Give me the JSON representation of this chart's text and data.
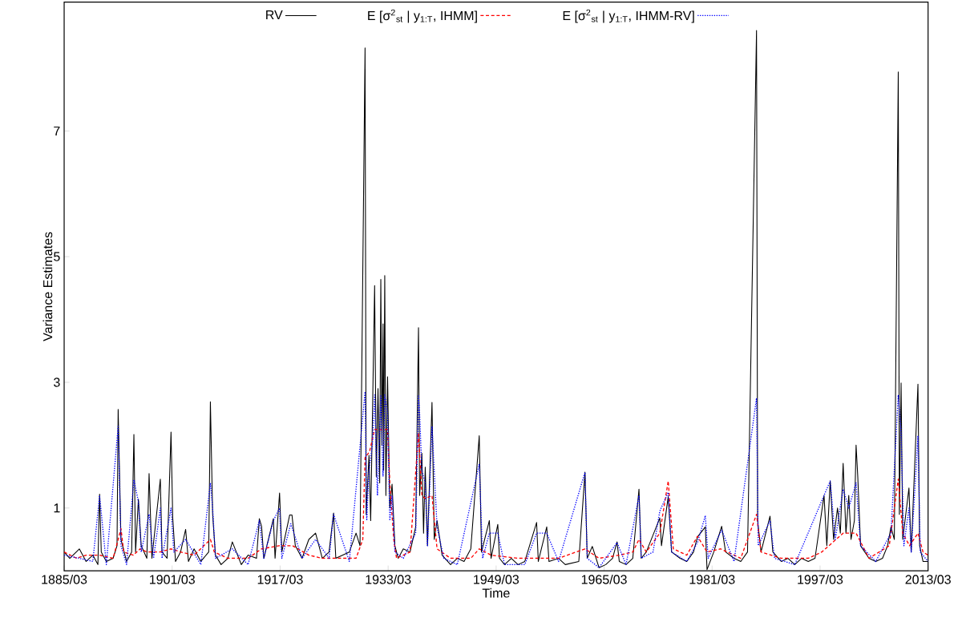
{
  "chart_data": {
    "type": "line",
    "xlabel": "Time",
    "ylabel": "Variance Estimates",
    "xlim": [
      "1885-03",
      "2013-03"
    ],
    "ylim": [
      0,
      9.05
    ],
    "xticks": [
      {
        "value": "1885-03",
        "label": "1885/03"
      },
      {
        "value": "1901-03",
        "label": "1901/03"
      },
      {
        "value": "1917-03",
        "label": "1917/03"
      },
      {
        "value": "1933-03",
        "label": "1933/03"
      },
      {
        "value": "1949-03",
        "label": "1949/03"
      },
      {
        "value": "1965-03",
        "label": "1965/03"
      },
      {
        "value": "1981-03",
        "label": "1981/03"
      },
      {
        "value": "1997-03",
        "label": "1997/03"
      },
      {
        "value": "2013-03",
        "label": "2013/03"
      }
    ],
    "yticks": [
      1,
      3,
      5,
      7
    ],
    "legend": "top",
    "grid": false,
    "marker": "none",
    "series": [
      {
        "name": "RV",
        "color": "#000000",
        "line_style": "solid",
        "x": [
          "1885-03",
          "1886-01",
          "1887-06",
          "1888-06",
          "1889-06",
          "1890-03",
          "1890-06",
          "1890-09",
          "1891-06",
          "1892-06",
          "1893-01",
          "1893-03",
          "1893-08",
          "1894-06",
          "1895-03",
          "1895-07",
          "1895-10",
          "1896-03",
          "1896-08",
          "1897-06",
          "1897-10",
          "1898-03",
          "1899-06",
          "1899-09",
          "1900-06",
          "1901-01",
          "1901-04",
          "1901-09",
          "1902-06",
          "1903-03",
          "1903-08",
          "1904-06",
          "1905-06",
          "1906-08",
          "1906-11",
          "1907-03",
          "1907-08",
          "1908-06",
          "1909-06",
          "1910-02",
          "1911-06",
          "1912-06",
          "1913-09",
          "1914-02",
          "1914-06",
          "1914-10",
          "1916-03",
          "1916-06",
          "1917-02",
          "1917-06",
          "1918-08",
          "1918-12",
          "1919-06",
          "1920-06",
          "1921-06",
          "1922-06",
          "1923-06",
          "1924-06",
          "1925-02",
          "1925-06",
          "1926-06",
          "1927-06",
          "1928-06",
          "1929-01",
          "1929-10",
          "1929-12",
          "1930-05",
          "1930-08",
          "1930-11",
          "1931-03",
          "1931-06",
          "1931-09",
          "1931-12",
          "1932-02",
          "1932-04",
          "1932-06",
          "1932-07",
          "1932-09",
          "1932-11",
          "1933-02",
          "1933-06",
          "1933-10",
          "1934-03",
          "1934-09",
          "1935-06",
          "1936-06",
          "1937-04",
          "1937-09",
          "1937-11",
          "1938-03",
          "1938-06",
          "1938-09",
          "1939-01",
          "1939-09",
          "1940-01",
          "1940-06",
          "1941-03",
          "1942-06",
          "1943-06",
          "1944-06",
          "1945-06",
          "1946-09",
          "1947-01",
          "1948-03",
          "1948-06",
          "1949-06",
          "1949-09",
          "1950-06",
          "1951-06",
          "1952-06",
          "1953-06",
          "1955-03",
          "1955-06",
          "1956-09",
          "1957-01",
          "1958-06",
          "1959-06",
          "1961-06",
          "1962-05",
          "1962-09",
          "1963-06",
          "1964-06",
          "1965-06",
          "1966-06",
          "1967-02",
          "1967-06",
          "1968-06",
          "1969-06",
          "1970-05",
          "1970-09",
          "1971-06",
          "1973-06",
          "1973-09",
          "1974-09",
          "1975-03",
          "1976-06",
          "1977-06",
          "1978-06",
          "1979-01",
          "1980-03",
          "1980-06",
          "1981-06",
          "1982-08",
          "1983-03",
          "1984-06",
          "1985-06",
          "1986-06",
          "1987-10",
          "1987-12",
          "1988-06",
          "1989-10",
          "1990-03",
          "1991-06",
          "1992-06",
          "1993-06",
          "1994-06",
          "1995-06",
          "1996-06",
          "1997-10",
          "1998-03",
          "1998-09",
          "1999-03",
          "1999-10",
          "2000-03",
          "2000-08",
          "2001-01",
          "2001-06",
          "2001-10",
          "2002-04",
          "2002-07",
          "2002-10",
          "2003-03",
          "2004-06",
          "2005-06",
          "2006-06",
          "2007-03",
          "2007-09",
          "2008-03",
          "2008-10",
          "2008-12",
          "2009-03",
          "2009-06",
          "2010-05",
          "2010-09",
          "2011-09",
          "2011-12",
          "2012-06",
          "2013-03"
        ],
        "values": [
          0.3,
          0.2,
          0.35,
          0.15,
          0.25,
          0.1,
          1.22,
          0.3,
          0.15,
          0.2,
          0.4,
          2.57,
          0.5,
          0.15,
          0.3,
          2.17,
          0.3,
          1.14,
          0.4,
          0.2,
          1.55,
          0.2,
          1.46,
          0.3,
          0.2,
          2.21,
          0.85,
          0.15,
          0.3,
          0.66,
          0.15,
          0.35,
          0.15,
          0.3,
          2.69,
          0.9,
          0.25,
          0.1,
          0.2,
          0.46,
          0.1,
          0.25,
          0.2,
          0.83,
          0.71,
          0.2,
          0.83,
          0.2,
          1.24,
          0.3,
          0.89,
          0.89,
          0.4,
          0.2,
          0.5,
          0.6,
          0.2,
          0.3,
          0.92,
          0.2,
          0.25,
          0.3,
          0.6,
          0.4,
          8.32,
          0.9,
          1.84,
          0.8,
          2.4,
          4.54,
          1.5,
          2.9,
          1.4,
          4.64,
          2.0,
          3.93,
          1.6,
          4.7,
          1.2,
          3.09,
          1.0,
          1.38,
          0.4,
          0.2,
          0.35,
          0.3,
          0.7,
          3.87,
          1.2,
          1.87,
          0.6,
          1.65,
          0.4,
          2.68,
          0.5,
          0.8,
          0.25,
          0.1,
          0.2,
          0.15,
          0.35,
          2.15,
          0.3,
          0.8,
          0.2,
          0.74,
          0.2,
          0.1,
          0.2,
          0.1,
          0.15,
          0.77,
          0.15,
          0.7,
          0.15,
          0.2,
          0.1,
          0.15,
          1.57,
          0.2,
          0.39,
          0.05,
          0.1,
          0.2,
          0.46,
          0.15,
          0.1,
          0.2,
          1.3,
          0.2,
          0.3,
          0.84,
          0.4,
          1.18,
          0.3,
          0.2,
          0.15,
          0.3,
          0.54,
          0.7,
          0.02,
          0.3,
          0.71,
          0.3,
          0.2,
          0.15,
          0.3,
          8.6,
          0.8,
          0.3,
          0.87,
          0.3,
          0.15,
          0.2,
          0.1,
          0.2,
          0.15,
          0.2,
          1.2,
          0.4,
          1.43,
          0.5,
          1.0,
          0.6,
          1.71,
          0.6,
          1.2,
          0.5,
          0.8,
          2.0,
          1.5,
          0.4,
          0.2,
          0.15,
          0.2,
          0.4,
          0.7,
          0.5,
          7.94,
          0.9,
          2.99,
          0.5,
          1.32,
          0.3,
          2.97,
          0.4,
          0.15,
          0.15
        ]
      },
      {
        "name": "E [σ$^{2}$$_{st}$ | y$_{1:T}$, IHMM]",
        "color": "#ff0000",
        "line_style": "dashed",
        "x": [
          "1885-03",
          "1887-01",
          "1888-06",
          "1890-06",
          "1892-06",
          "1893-03",
          "1893-08",
          "1894-01",
          "1895-06",
          "1896-06",
          "1897-06",
          "1899-06",
          "1901-01",
          "1902-06",
          "1904-06",
          "1906-11",
          "1907-06",
          "1909-06",
          "1912-06",
          "1914-06",
          "1917-01",
          "1919-01",
          "1921-06",
          "1923-06",
          "1926-06",
          "1928-06",
          "1929-06",
          "1929-10",
          "1930-06",
          "1931-03",
          "1933-02",
          "1933-06",
          "1934-01",
          "1934-06",
          "1936-06",
          "1937-09",
          "1938-03",
          "1938-09",
          "1939-09",
          "1940-06",
          "1942-06",
          "1945-06",
          "1946-09",
          "1948-06",
          "1952-06",
          "1958-06",
          "1962-05",
          "1964-06",
          "1967-06",
          "1969-06",
          "1970-05",
          "1971-06",
          "1973-06",
          "1974-09",
          "1975-06",
          "1977-06",
          "1979-01",
          "1980-06",
          "1982-06",
          "1985-06",
          "1987-10",
          "1988-06",
          "1991-06",
          "1995-06",
          "1997-06",
          "2000-08",
          "2002-07",
          "2004-06",
          "2007-06",
          "2008-10",
          "2009-06",
          "2010-06",
          "2011-09",
          "2012-06",
          "2013-03"
        ],
        "values": [
          0.3,
          0.2,
          0.25,
          0.25,
          0.2,
          0.5,
          0.67,
          0.3,
          0.25,
          0.35,
          0.3,
          0.3,
          0.35,
          0.3,
          0.25,
          0.5,
          0.3,
          0.2,
          0.2,
          0.35,
          0.4,
          0.4,
          0.25,
          0.2,
          0.2,
          0.2,
          0.5,
          1.8,
          1.9,
          2.25,
          2.25,
          1.4,
          0.5,
          0.2,
          0.3,
          2.2,
          1.2,
          1.15,
          1.2,
          0.35,
          0.2,
          0.2,
          0.35,
          0.25,
          0.2,
          0.2,
          0.35,
          0.2,
          0.25,
          0.3,
          0.5,
          0.3,
          0.6,
          1.43,
          0.35,
          0.25,
          0.55,
          0.3,
          0.35,
          0.2,
          0.9,
          0.3,
          0.2,
          0.2,
          0.3,
          0.6,
          0.6,
          0.2,
          0.4,
          1.46,
          0.6,
          0.4,
          0.6,
          0.3,
          0.25
        ]
      },
      {
        "name": "E [σ$^{2}$$_{st}$ | y$_{1:T}$, IHMM-RV]",
        "color": "#0000ff",
        "line_style": "dotted",
        "x": [
          "1885-03",
          "1887-06",
          "1889-06",
          "1890-06",
          "1891-06",
          "1893-03",
          "1893-08",
          "1894-06",
          "1895-07",
          "1896-03",
          "1896-08",
          "1897-10",
          "1898-06",
          "1899-06",
          "1899-09",
          "1901-01",
          "1901-06",
          "1903-03",
          "1905-06",
          "1906-11",
          "1907-03",
          "1907-08",
          "1910-02",
          "1912-06",
          "1914-02",
          "1914-10",
          "1916-03",
          "1917-02",
          "1917-06",
          "1918-10",
          "1920-06",
          "1922-06",
          "1924-06",
          "1925-02",
          "1927-06",
          "1929-10",
          "1930-01",
          "1930-05",
          "1930-11",
          "1931-03",
          "1931-08",
          "1932-02",
          "1932-06",
          "1932-09",
          "1933-02",
          "1933-06",
          "1933-10",
          "1934-03",
          "1935-06",
          "1937-04",
          "1937-09",
          "1937-11",
          "1938-03",
          "1938-09",
          "1939-01",
          "1939-09",
          "1940-06",
          "1941-06",
          "1943-06",
          "1946-09",
          "1947-03",
          "1948-03",
          "1949-06",
          "1950-06",
          "1953-06",
          "1955-03",
          "1956-09",
          "1958-06",
          "1962-05",
          "1962-09",
          "1964-06",
          "1967-02",
          "1968-06",
          "1970-05",
          "1970-09",
          "1972-06",
          "1973-06",
          "1974-09",
          "1975-03",
          "1977-06",
          "1979-01",
          "1980-03",
          "1980-08",
          "1982-08",
          "1984-06",
          "1987-10",
          "1988-01",
          "1989-10",
          "1990-06",
          "1993-06",
          "1997-10",
          "1998-09",
          "1999-06",
          "2000-08",
          "2001-06",
          "2002-07",
          "2003-03",
          "2005-06",
          "2007-09",
          "2008-10",
          "2009-03",
          "2009-08",
          "2010-05",
          "2010-09",
          "2011-09",
          "2012-01",
          "2013-03"
        ],
        "values": [
          0.25,
          0.2,
          0.15,
          1.2,
          0.1,
          2.3,
          0.4,
          0.1,
          1.45,
          1.1,
          0.3,
          0.9,
          0.2,
          1.0,
          0.2,
          1.0,
          0.3,
          0.5,
          0.1,
          1.4,
          1.0,
          0.2,
          0.35,
          0.1,
          0.8,
          0.2,
          0.8,
          1.0,
          0.2,
          0.75,
          0.2,
          0.5,
          0.2,
          0.9,
          0.15,
          2.85,
          0.8,
          1.6,
          2.0,
          2.8,
          1.2,
          2.8,
          1.5,
          2.8,
          2.5,
          0.8,
          1.2,
          0.3,
          0.2,
          0.6,
          2.8,
          2.5,
          1.6,
          1.4,
          0.4,
          2.3,
          0.7,
          0.2,
          0.1,
          1.7,
          0.2,
          0.6,
          0.6,
          0.1,
          0.1,
          0.6,
          0.6,
          0.15,
          1.57,
          0.2,
          0.05,
          0.45,
          0.1,
          1.2,
          0.2,
          0.3,
          0.95,
          1.25,
          0.3,
          0.15,
          0.45,
          0.88,
          0.2,
          0.65,
          0.15,
          2.75,
          0.4,
          0.8,
          0.2,
          0.1,
          1.2,
          1.43,
          0.5,
          1.3,
          1.0,
          1.4,
          0.4,
          0.15,
          0.6,
          2.8,
          2.2,
          0.4,
          1.0,
          0.3,
          2.15,
          0.3,
          0.15
        ]
      }
    ]
  }
}
